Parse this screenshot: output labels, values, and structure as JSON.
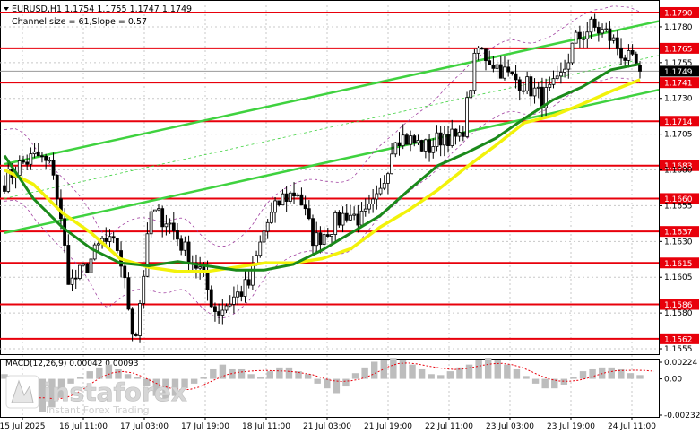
{
  "header": {
    "symbol_line": "EURUSD,H1  1.1754 1.1755 1.1747 1.1749",
    "channel_line": "Channel size = 61,Slope = 0.57"
  },
  "colors": {
    "level_line": "#e8000b",
    "channel": "#3fd23f",
    "ma_fast": "#1a8a1a",
    "ma_slow": "#f2f20a",
    "bollinger": "#a040a0",
    "candle": "#000000",
    "macd_hist": "#bdbdbd",
    "macd_signal": "#e8000b",
    "grid": "#c8c8c8",
    "price_marker": "#000000"
  },
  "chart_data": [
    {
      "type": "candlestick",
      "symbol": "EURUSD",
      "timeframe": "H1",
      "ohlc_last": {
        "open": 1.1754,
        "high": 1.1755,
        "low": 1.1747,
        "close": 1.1749
      },
      "channel_size": 61,
      "slope": 0.57,
      "ylim": [
        1.155,
        1.1795
      ],
      "y_ticks": [
        1.178,
        1.1755,
        1.173,
        1.1705,
        1.168,
        1.1655,
        1.163,
        1.1605,
        1.158,
        1.1555
      ],
      "x_tick_labels": [
        "15 Jul 2025",
        "16 Jul 11:00",
        "17 Jul 03:00",
        "17 Jul 19:00",
        "18 Jul 11:00",
        "21 Jul 03:00",
        "21 Jul 19:00",
        "22 Jul 11:00",
        "23 Jul 03:00",
        "23 Jul 19:00",
        "24 Jul 11:00"
      ],
      "levels": [
        1.179,
        1.1765,
        1.1741,
        1.1714,
        1.1683,
        1.166,
        1.1637,
        1.1615,
        1.1586,
        1.1562
      ],
      "current_price": 1.1749,
      "close_path": [
        1.1672,
        1.1684,
        1.169,
        1.168,
        1.16,
        1.1612,
        1.163,
        1.1625,
        1.156,
        1.165,
        1.1645,
        1.1625,
        1.161,
        1.158,
        1.159,
        1.16,
        1.164,
        1.166,
        1.1665,
        1.163,
        1.164,
        1.165,
        1.1645,
        1.166,
        1.1705,
        1.17,
        1.1695,
        1.1705,
        1.17,
        1.1765,
        1.1755,
        1.1745,
        1.174,
        1.173,
        1.174,
        1.177,
        1.178,
        1.1775,
        1.176,
        1.1749
      ],
      "channel": {
        "upper": [
          1.1684,
          1.1784
        ],
        "lower": [
          1.1636,
          1.1736
        ]
      },
      "ma_fast": [
        1.169,
        1.166,
        1.164,
        1.1625,
        1.1615,
        1.1613,
        1.1616,
        1.1613,
        1.161,
        1.161,
        1.1614,
        1.1624,
        1.1636,
        1.1648,
        1.1666,
        1.1683,
        1.1692,
        1.1702,
        1.1716,
        1.1729,
        1.1738,
        1.175,
        1.1754
      ],
      "ma_slow": [
        1.168,
        1.167,
        1.165,
        1.1636,
        1.1618,
        1.1612,
        1.1609,
        1.1609,
        1.1612,
        1.1615,
        1.1615,
        1.1618,
        1.1625,
        1.164,
        1.1652,
        1.1666,
        1.1682,
        1.1697,
        1.1713,
        1.1718,
        1.1726,
        1.1735,
        1.1743
      ]
    },
    {
      "type": "bar",
      "indicator": "MACD",
      "label": "MACD(12,26,9) 0.00042 0.00093",
      "params": [
        12,
        26,
        9
      ],
      "main": 0.00042,
      "signal": 0.00093,
      "ylim": [
        -0.0004,
        0.00026
      ],
      "y_ticks": [
        0.00224,
        0.0,
        -0.00232
      ],
      "histogram": [
        5e-05,
        -0.0001,
        -0.0002,
        -0.0003,
        -0.00035,
        -0.0003,
        -0.0002,
        -5e-05,
        2e-05,
        8e-05,
        0.00012,
        0.00015,
        0.0001,
        5e-05,
        2e-05,
        -8e-05,
        -0.00018,
        -0.00022,
        -0.00018,
        -0.0001,
        -5e-05,
        2e-05,
        0.0001,
        0.00015,
        0.0001,
        0.0001,
        5e-05,
        2e-05,
        8e-05,
        0.00012,
        0.00012,
        8e-05,
        5e-05,
        -5e-05,
        -0.0001,
        -0.00015,
        -8e-05,
        6e-05,
        0.00012,
        0.00018,
        0.0002,
        0.00022,
        0.0002,
        0.00015,
        0.0001,
        5e-05,
        4e-05,
        8e-05,
        0.00012,
        0.00015,
        0.0002,
        0.00022,
        0.0002,
        0.00015,
        0.0001,
        3e-05,
        -5e-05,
        -0.0001,
        -0.0001,
        -6e-05,
        2e-05,
        8e-05,
        0.0001,
        0.00012,
        0.00012,
        0.0001,
        6e-05,
        4e-05
      ]
    }
  ],
  "watermark": {
    "brand": "instaforex",
    "tagline": "Instant Forex Trading"
  }
}
